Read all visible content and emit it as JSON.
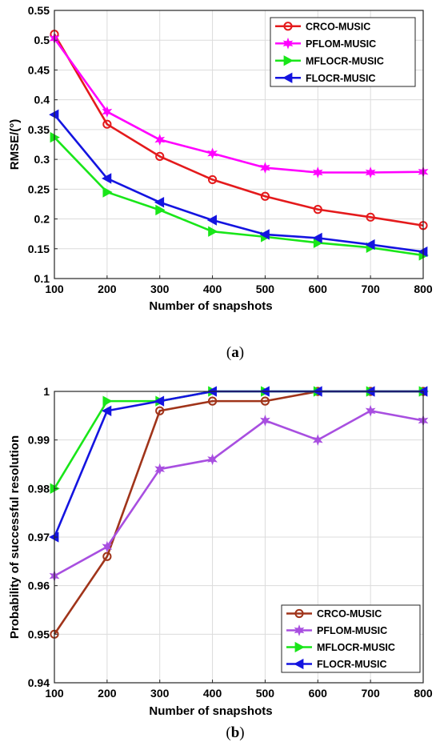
{
  "chart_data": [
    {
      "type": "line",
      "caption_letter": "a",
      "xlabel": "Number of snapshots",
      "ylabel": "RMSE/(°)",
      "x": [
        100,
        200,
        300,
        400,
        500,
        600,
        700,
        800
      ],
      "xlim": [
        100,
        800
      ],
      "ylim": [
        0.1,
        0.55
      ],
      "xticks": [
        100,
        200,
        300,
        400,
        500,
        600,
        700,
        800
      ],
      "yticks": [
        0.1,
        0.15,
        0.2,
        0.25,
        0.3,
        0.35,
        0.4,
        0.45,
        0.5,
        0.55
      ],
      "ytick_labels": [
        "0.1",
        "0.15",
        "0.2",
        "0.25",
        "0.3",
        "0.35",
        "0.4",
        "0.45",
        "0.5",
        "0.55"
      ],
      "grid": true,
      "legend_position": "top-right",
      "series": [
        {
          "name": "CRCO-MUSIC",
          "marker": "circle",
          "color": "#e41a1c",
          "values": [
            0.51,
            0.359,
            0.305,
            0.266,
            0.238,
            0.216,
            0.203,
            0.189
          ]
        },
        {
          "name": "PFLOM-MUSIC",
          "marker": "star",
          "color": "#ff00ff",
          "values": [
            0.503,
            0.38,
            0.333,
            0.31,
            0.286,
            0.278,
            0.278,
            0.279
          ]
        },
        {
          "name": "MFLOCR-MUSIC",
          "marker": "triangle-right",
          "color": "#19e619",
          "values": [
            0.337,
            0.245,
            0.215,
            0.179,
            0.17,
            0.16,
            0.152,
            0.139
          ]
        },
        {
          "name": "FLOCR-MUSIC",
          "marker": "triangle-left",
          "color": "#1414e0",
          "values": [
            0.375,
            0.268,
            0.228,
            0.198,
            0.174,
            0.168,
            0.157,
            0.145
          ]
        }
      ]
    },
    {
      "type": "line",
      "caption_letter": "b",
      "xlabel": "Number of snapshots",
      "ylabel": "Probability of successful resolution",
      "x": [
        100,
        200,
        300,
        400,
        500,
        600,
        700,
        800
      ],
      "xlim": [
        100,
        800
      ],
      "ylim": [
        0.94,
        1.0
      ],
      "xticks": [
        100,
        200,
        300,
        400,
        500,
        600,
        700,
        800
      ],
      "yticks": [
        0.94,
        0.95,
        0.96,
        0.97,
        0.98,
        0.99,
        1.0
      ],
      "ytick_labels": [
        "0.94",
        "0.95",
        "0.96",
        "0.97",
        "0.98",
        "0.99",
        "1"
      ],
      "grid": true,
      "legend_position": "bottom-right",
      "series": [
        {
          "name": "CRCO-MUSIC",
          "marker": "circle",
          "color": "#a0341a",
          "values": [
            0.95,
            0.966,
            0.996,
            0.998,
            0.998,
            1.0,
            1.0,
            1.0
          ]
        },
        {
          "name": "PFLOM-MUSIC",
          "marker": "star",
          "color": "#a84fe0",
          "values": [
            0.962,
            0.968,
            0.984,
            0.986,
            0.994,
            0.99,
            0.996,
            0.994
          ]
        },
        {
          "name": "MFLOCR-MUSIC",
          "marker": "triangle-right",
          "color": "#19e619",
          "values": [
            0.98,
            0.998,
            0.998,
            1.0,
            1.0,
            1.0,
            1.0,
            1.0
          ]
        },
        {
          "name": "FLOCR-MUSIC",
          "marker": "triangle-left",
          "color": "#1414e0",
          "values": [
            0.97,
            0.996,
            0.998,
            1.0,
            1.0,
            1.0,
            1.0,
            1.0
          ]
        }
      ]
    }
  ]
}
